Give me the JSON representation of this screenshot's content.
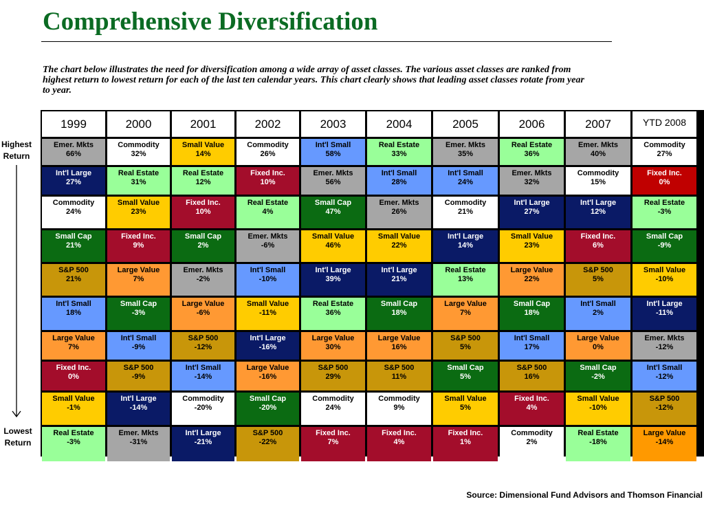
{
  "title": "Comprehensive Diversification",
  "intro": "The chart below illustrates the need for diversification among a wide array of asset classes. The various asset classes are ranked from highest return to lowest return for each of the last ten calendar years. This chart clearly shows that leading asset classes rotate from year to year.",
  "side_labels": {
    "highest": "Highest\nReturn",
    "lowest": "Lowest\nReturn"
  },
  "source": "Source: Dimensional Fund Advisors and Thomson Financial",
  "colors": {
    "title": "#0b6b23",
    "Emer. Mkts": "#a6a6a6",
    "Commodity": "#ffffff",
    "Small Value": "#ffcc00",
    "Int'l Small": "#6699ff",
    "Real Estate": "#99ff99",
    "Int'l Large": "#0a1a66",
    "Fixed Inc.": "#a30d2b",
    "Small Cap": "#0b6b12",
    "S&P 500": "#c8960a",
    "Large Value": "#ff9933"
  },
  "chart_data": {
    "type": "table",
    "title": "Comprehensive Diversification",
    "columns": [
      "1999",
      "2000",
      "2001",
      "2002",
      "2003",
      "2004",
      "2005",
      "2006",
      "2007",
      "YTD 2008"
    ],
    "rank_order": "highest return at top, lowest return at bottom",
    "rows": [
      [
        {
          "asset": "Emer. Mkts",
          "return": "66%"
        },
        {
          "asset": "Commodity",
          "return": "32%"
        },
        {
          "asset": "Small Value",
          "return": "14%"
        },
        {
          "asset": "Commodity",
          "return": "26%"
        },
        {
          "asset": "Int'l Small",
          "return": "58%"
        },
        {
          "asset": "Real Estate",
          "return": "33%"
        },
        {
          "asset": "Emer. Mkts",
          "return": "35%"
        },
        {
          "asset": "Real Estate",
          "return": "36%"
        },
        {
          "asset": "Emer. Mkts",
          "return": "40%"
        },
        {
          "asset": "Commodity",
          "return": "27%"
        }
      ],
      [
        {
          "asset": "Int'l Large",
          "return": "27%"
        },
        {
          "asset": "Real Estate",
          "return": "31%"
        },
        {
          "asset": "Real Estate",
          "return": "12%"
        },
        {
          "asset": "Fixed Inc.",
          "return": "10%"
        },
        {
          "asset": "Emer. Mkts",
          "return": "56%"
        },
        {
          "asset": "Int'l Small",
          "return": "28%"
        },
        {
          "asset": "Int'l Small",
          "return": "24%"
        },
        {
          "asset": "Emer. Mkts",
          "return": "32%"
        },
        {
          "asset": "Commodity",
          "return": "15%"
        },
        {
          "asset": "Fixed Inc.",
          "return": "0%",
          "color": "#c00000"
        }
      ],
      [
        {
          "asset": "Commodity",
          "return": "24%"
        },
        {
          "asset": "Small Value",
          "return": "23%"
        },
        {
          "asset": "Fixed Inc.",
          "return": "10%"
        },
        {
          "asset": "Real Estate",
          "return": "4%"
        },
        {
          "asset": "Small Cap",
          "return": "47%"
        },
        {
          "asset": "Emer. Mkts",
          "return": "26%"
        },
        {
          "asset": "Commodity",
          "return": "21%"
        },
        {
          "asset": "Int'l Large",
          "return": "27%"
        },
        {
          "asset": "Int'l Large",
          "return": "12%"
        },
        {
          "asset": "Real Estate",
          "return": "-3%"
        }
      ],
      [
        {
          "asset": "Small Cap",
          "return": "21%"
        },
        {
          "asset": "Fixed Inc.",
          "return": "9%"
        },
        {
          "asset": "Small Cap",
          "return": "2%"
        },
        {
          "asset": "Emer. Mkts",
          "return": "-6%"
        },
        {
          "asset": "Small Value",
          "return": "46%"
        },
        {
          "asset": "Small Value",
          "return": "22%"
        },
        {
          "asset": "Int'l Large",
          "return": "14%"
        },
        {
          "asset": "Small Value",
          "return": "23%"
        },
        {
          "asset": "Fixed Inc.",
          "return": "6%"
        },
        {
          "asset": "Small Cap",
          "return": "-9%"
        }
      ],
      [
        {
          "asset": "S&P 500",
          "return": "21%"
        },
        {
          "asset": "Large Value",
          "return": "7%"
        },
        {
          "asset": "Emer. Mkts",
          "return": "-2%"
        },
        {
          "asset": "Int'l Small",
          "return": "-10%"
        },
        {
          "asset": "Int'l Large",
          "return": "39%"
        },
        {
          "asset": "Int'l Large",
          "return": "21%"
        },
        {
          "asset": "Real Estate",
          "return": "13%"
        },
        {
          "asset": "Large Value",
          "return": "22%"
        },
        {
          "asset": "S&P 500",
          "return": "5%"
        },
        {
          "asset": "Small Value",
          "return": "-10%"
        }
      ],
      [
        {
          "asset": "Int'l Small",
          "return": "18%"
        },
        {
          "asset": "Small Cap",
          "return": "-3%"
        },
        {
          "asset": "Large Value",
          "return": "-6%"
        },
        {
          "asset": "Small Value",
          "return": "-11%"
        },
        {
          "asset": "Real Estate",
          "return": "36%"
        },
        {
          "asset": "Small Cap",
          "return": "18%"
        },
        {
          "asset": "Large Value",
          "return": "7%"
        },
        {
          "asset": "Small Cap",
          "return": "18%"
        },
        {
          "asset": "Int'l Small",
          "return": "2%"
        },
        {
          "asset": "Int'l Large",
          "return": "-11%"
        }
      ],
      [
        {
          "asset": "Large Value",
          "return": "7%"
        },
        {
          "asset": "Int'l Small",
          "return": "-9%"
        },
        {
          "asset": "S&P 500",
          "return": "-12%"
        },
        {
          "asset": "Int'l Large",
          "return": "-16%"
        },
        {
          "asset": "Large Value",
          "return": "30%"
        },
        {
          "asset": "Large Value",
          "return": "16%"
        },
        {
          "asset": "S&P 500",
          "return": "5%"
        },
        {
          "asset": "Int'l Small",
          "return": "17%"
        },
        {
          "asset": "Large Value",
          "return": "0%"
        },
        {
          "asset": "Emer. Mkts",
          "return": "-12%"
        }
      ],
      [
        {
          "asset": "Fixed Inc.",
          "return": "0%"
        },
        {
          "asset": "S&P 500",
          "return": "-9%"
        },
        {
          "asset": "Int'l Small",
          "return": "-14%"
        },
        {
          "asset": "Large Value",
          "return": "-16%"
        },
        {
          "asset": "S&P 500",
          "return": "29%"
        },
        {
          "asset": "S&P 500",
          "return": "11%"
        },
        {
          "asset": "Small Cap",
          "return": "5%"
        },
        {
          "asset": "S&P 500",
          "return": "16%"
        },
        {
          "asset": "Small Cap",
          "return": "-2%"
        },
        {
          "asset": "Int'l Small",
          "return": "-12%"
        }
      ],
      [
        {
          "asset": "Small Value",
          "return": "-1%"
        },
        {
          "asset": "Int'l Large",
          "return": "-14%"
        },
        {
          "asset": "Commodity",
          "return": "-20%"
        },
        {
          "asset": "Small Cap",
          "return": "-20%"
        },
        {
          "asset": "Commodity",
          "return": "24%"
        },
        {
          "asset": "Commodity",
          "return": "9%"
        },
        {
          "asset": "Small Value",
          "return": "5%"
        },
        {
          "asset": "Fixed Inc.",
          "return": "4%"
        },
        {
          "asset": "Small Value",
          "return": "-10%"
        },
        {
          "asset": "S&P 500",
          "return": "-12%"
        }
      ],
      [
        {
          "asset": "Real Estate",
          "return": "-3%"
        },
        {
          "asset": "Emer. Mkts",
          "return": "-31%"
        },
        {
          "asset": "Int'l Large",
          "return": "-21%"
        },
        {
          "asset": "S&P 500",
          "return": "-22%"
        },
        {
          "asset": "Fixed Inc.",
          "return": "7%"
        },
        {
          "asset": "Fixed Inc.",
          "return": "4%"
        },
        {
          "asset": "Fixed Inc.",
          "return": "1%"
        },
        {
          "asset": "Commodity",
          "return": "2%"
        },
        {
          "asset": "Real Estate",
          "return": "-18%"
        },
        {
          "asset": "Large Value",
          "return": "-14%",
          "color": "#ff9900"
        }
      ]
    ]
  }
}
